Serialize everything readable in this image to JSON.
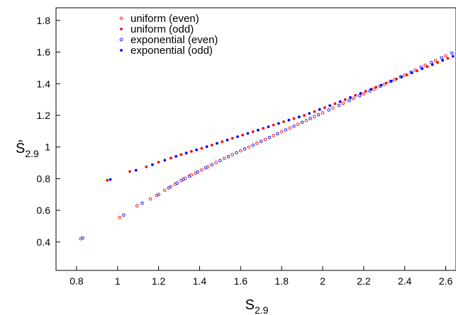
{
  "chart_data": {
    "type": "scatter",
    "title": "",
    "xlabel": {
      "base": "S",
      "subscript": "2.9"
    },
    "ylabel": {
      "base": "Ŝ",
      "subscript": "2.9"
    },
    "xlim": [
      0.7,
      2.65
    ],
    "ylim": [
      0.22,
      1.88
    ],
    "xticks": [
      0.8,
      1,
      1.2,
      1.4,
      1.6,
      1.8,
      2,
      2.2,
      2.4,
      2.6
    ],
    "yticks": [
      0.4,
      0.6,
      0.8,
      1,
      1.2,
      1.4,
      1.6,
      1.8
    ],
    "xtick_labels": [
      "0.8",
      "1",
      "1.2",
      "1.4",
      "1.6",
      "1.8",
      "2",
      "2.2",
      "2.4",
      "2.6"
    ],
    "ytick_labels": [
      "0.4",
      "0.6",
      "0.8",
      "1",
      "1.2",
      "1.4",
      "1.6",
      "1.8"
    ],
    "grid": false,
    "legend_position": "top-left",
    "colors": {
      "uniform": "#ff0000",
      "exponential": "#0000ff"
    },
    "series": [
      {
        "name": "uniform (even)",
        "marker": "open-circle",
        "color": "#ff0000",
        "points": [
          [
            0.82,
            0.42
          ],
          [
            1.01,
            0.555
          ],
          [
            1.095,
            0.628
          ],
          [
            1.16,
            0.672
          ],
          [
            1.19,
            0.694
          ],
          [
            1.23,
            0.727
          ],
          [
            1.26,
            0.749
          ],
          [
            1.28,
            0.765
          ],
          [
            1.31,
            0.788
          ],
          [
            1.33,
            0.802
          ],
          [
            1.36,
            0.823
          ],
          [
            1.38,
            0.835
          ],
          [
            1.41,
            0.855
          ],
          [
            1.44,
            0.875
          ],
          [
            1.48,
            0.902
          ],
          [
            1.52,
            0.928
          ],
          [
            1.56,
            0.952
          ],
          [
            1.6,
            0.976
          ],
          [
            1.64,
            1.0
          ],
          [
            1.68,
            1.024
          ],
          [
            1.72,
            1.048
          ],
          [
            1.76,
            1.072
          ],
          [
            1.8,
            1.096
          ],
          [
            1.84,
            1.12
          ],
          [
            1.88,
            1.144
          ],
          [
            1.92,
            1.168
          ],
          [
            1.96,
            1.192
          ],
          [
            2.0,
            1.216
          ],
          [
            2.05,
            1.246
          ],
          [
            2.1,
            1.276
          ],
          [
            2.15,
            1.306
          ],
          [
            2.2,
            1.336
          ],
          [
            2.25,
            1.366
          ],
          [
            2.3,
            1.396
          ],
          [
            2.35,
            1.426
          ],
          [
            2.4,
            1.456
          ],
          [
            2.45,
            1.486
          ],
          [
            2.5,
            1.516
          ],
          [
            2.55,
            1.546
          ],
          [
            2.6,
            1.576
          ]
        ]
      },
      {
        "name": "uniform (odd)",
        "marker": "filled-circle",
        "color": "#ff0000",
        "points": [
          [
            0.95,
            0.79
          ],
          [
            1.06,
            0.845
          ],
          [
            1.14,
            0.875
          ],
          [
            1.2,
            0.904
          ],
          [
            1.26,
            0.93
          ],
          [
            1.31,
            0.952
          ],
          [
            1.36,
            0.972
          ],
          [
            1.41,
            0.992
          ],
          [
            1.46,
            1.012
          ],
          [
            1.51,
            1.034
          ],
          [
            1.56,
            1.055
          ],
          [
            1.61,
            1.076
          ],
          [
            1.66,
            1.097
          ],
          [
            1.71,
            1.118
          ],
          [
            1.76,
            1.139
          ],
          [
            1.81,
            1.16
          ],
          [
            1.86,
            1.18
          ],
          [
            1.91,
            1.2
          ],
          [
            1.96,
            1.224
          ],
          [
            2.01,
            1.249
          ],
          [
            2.06,
            1.274
          ],
          [
            2.11,
            1.3
          ],
          [
            2.16,
            1.326
          ],
          [
            2.21,
            1.352
          ],
          [
            2.26,
            1.378
          ],
          [
            2.31,
            1.404
          ],
          [
            2.36,
            1.43
          ],
          [
            2.41,
            1.456
          ],
          [
            2.46,
            1.482
          ],
          [
            2.51,
            1.508
          ],
          [
            2.56,
            1.534
          ],
          [
            2.61,
            1.56
          ]
        ]
      },
      {
        "name": "exponential (even)",
        "marker": "open-circle",
        "color": "#0000ff",
        "points": [
          [
            0.83,
            0.425
          ],
          [
            1.03,
            0.57
          ],
          [
            1.12,
            0.645
          ],
          [
            1.2,
            0.7
          ],
          [
            1.25,
            0.742
          ],
          [
            1.29,
            0.772
          ],
          [
            1.32,
            0.795
          ],
          [
            1.35,
            0.816
          ],
          [
            1.39,
            0.842
          ],
          [
            1.43,
            0.868
          ],
          [
            1.46,
            0.888
          ],
          [
            1.5,
            0.914
          ],
          [
            1.54,
            0.94
          ],
          [
            1.58,
            0.964
          ],
          [
            1.62,
            0.988
          ],
          [
            1.66,
            1.012
          ],
          [
            1.7,
            1.036
          ],
          [
            1.74,
            1.06
          ],
          [
            1.78,
            1.084
          ],
          [
            1.82,
            1.108
          ],
          [
            1.86,
            1.132
          ],
          [
            1.9,
            1.156
          ],
          [
            1.94,
            1.18
          ],
          [
            1.98,
            1.204
          ],
          [
            2.03,
            1.234
          ],
          [
            2.08,
            1.264
          ],
          [
            2.13,
            1.294
          ],
          [
            2.18,
            1.324
          ],
          [
            2.23,
            1.354
          ],
          [
            2.28,
            1.384
          ],
          [
            2.33,
            1.414
          ],
          [
            2.38,
            1.444
          ],
          [
            2.43,
            1.474
          ],
          [
            2.48,
            1.504
          ],
          [
            2.53,
            1.534
          ],
          [
            2.58,
            1.564
          ],
          [
            2.63,
            1.594
          ]
        ]
      },
      {
        "name": "exponential (odd)",
        "marker": "filled-circle",
        "color": "#0000ff",
        "points": [
          [
            0.965,
            0.795
          ],
          [
            1.09,
            0.853
          ],
          [
            1.17,
            0.888
          ],
          [
            1.23,
            0.916
          ],
          [
            1.285,
            0.941
          ],
          [
            1.335,
            0.962
          ],
          [
            1.385,
            0.982
          ],
          [
            1.435,
            1.002
          ],
          [
            1.485,
            1.023
          ],
          [
            1.535,
            1.044
          ],
          [
            1.585,
            1.065
          ],
          [
            1.635,
            1.086
          ],
          [
            1.685,
            1.107
          ],
          [
            1.735,
            1.128
          ],
          [
            1.785,
            1.149
          ],
          [
            1.835,
            1.17
          ],
          [
            1.885,
            1.19
          ],
          [
            1.935,
            1.212
          ],
          [
            1.985,
            1.237
          ],
          [
            2.035,
            1.262
          ],
          [
            2.085,
            1.287
          ],
          [
            2.135,
            1.313
          ],
          [
            2.185,
            1.339
          ],
          [
            2.235,
            1.365
          ],
          [
            2.285,
            1.391
          ],
          [
            2.335,
            1.417
          ],
          [
            2.385,
            1.443
          ],
          [
            2.435,
            1.469
          ],
          [
            2.485,
            1.495
          ],
          [
            2.535,
            1.521
          ],
          [
            2.585,
            1.547
          ],
          [
            2.635,
            1.573
          ]
        ]
      }
    ]
  }
}
